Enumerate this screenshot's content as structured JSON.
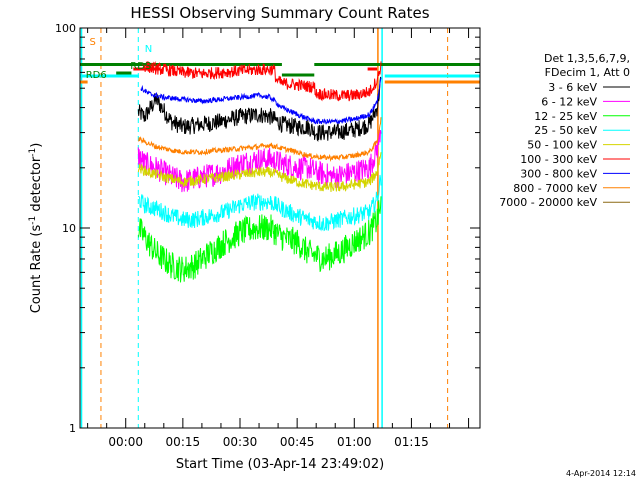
{
  "chart_data": {
    "type": "line",
    "title": "HESSI Observing Summary Count Rates",
    "xlabel": "Start Time (03-Apr-14 23:49:02)",
    "ylabel": "Count Rate (s^-1 detector^-1)",
    "ylabel_main": "Count Rate (s",
    "ylabel_exp1": "-1",
    "ylabel_mid": " detector",
    "ylabel_exp2": "-1",
    "ylabel_end": ")",
    "yscale": "log",
    "ylim": [
      1,
      100
    ],
    "xlim_minutes": [
      -12,
      93
    ],
    "y_ticks": [
      "1",
      "10",
      "100"
    ],
    "x_ticks": [
      {
        "m": 0,
        "label": "00:00"
      },
      {
        "m": 15,
        "label": "00:15"
      },
      {
        "m": 30,
        "label": "00:30"
      },
      {
        "m": 45,
        "label": "00:45"
      },
      {
        "m": 60,
        "label": "01:00"
      },
      {
        "m": 75,
        "label": "01:15"
      }
    ],
    "legend_header": [
      "Det 1,3,5,6,7,9,",
      "FDecim 1, Att 0"
    ],
    "legend_position": "right",
    "series": [
      {
        "name": "3 - 6 keV",
        "color": "#000000",
        "noise": 0.1,
        "points": [
          [
            3.3,
            38
          ],
          [
            5,
            36
          ],
          [
            8,
            44
          ],
          [
            12,
            34
          ],
          [
            15,
            32
          ],
          [
            20,
            33
          ],
          [
            25,
            34
          ],
          [
            30,
            36
          ],
          [
            35,
            37
          ],
          [
            38,
            36
          ],
          [
            41,
            33
          ],
          [
            45,
            32
          ],
          [
            48,
            32
          ],
          [
            50,
            30
          ],
          [
            55,
            30
          ],
          [
            60,
            31
          ],
          [
            64,
            33
          ],
          [
            66,
            40
          ],
          [
            67,
            55
          ]
        ]
      },
      {
        "name": "6 - 12 keV",
        "color": "#ff00ff",
        "noise": 0.14,
        "points": [
          [
            3.3,
            23
          ],
          [
            5,
            21
          ],
          [
            8,
            20
          ],
          [
            12,
            18
          ],
          [
            15,
            17
          ],
          [
            20,
            18
          ],
          [
            25,
            19
          ],
          [
            30,
            21
          ],
          [
            35,
            22
          ],
          [
            38,
            22
          ],
          [
            41,
            21
          ],
          [
            45,
            20
          ],
          [
            48,
            20
          ],
          [
            50,
            19
          ],
          [
            55,
            18
          ],
          [
            60,
            19
          ],
          [
            64,
            20
          ],
          [
            66,
            25
          ],
          [
            67,
            32
          ]
        ]
      },
      {
        "name": "12 - 25 keV",
        "color": "#00ff00",
        "noise": 0.16,
        "points": [
          [
            3.3,
            10
          ],
          [
            5,
            9
          ],
          [
            8,
            7.5
          ],
          [
            12,
            6.5
          ],
          [
            15,
            6.2
          ],
          [
            18,
            6.5
          ],
          [
            22,
            7.5
          ],
          [
            26,
            8.5
          ],
          [
            30,
            9.5
          ],
          [
            34,
            10
          ],
          [
            38,
            10
          ],
          [
            41,
            9
          ],
          [
            45,
            8.5
          ],
          [
            48,
            7.5
          ],
          [
            52,
            7
          ],
          [
            56,
            7.5
          ],
          [
            60,
            8.5
          ],
          [
            64,
            9.5
          ],
          [
            66,
            11
          ],
          [
            67,
            13
          ]
        ]
      },
      {
        "name": "25 - 50 keV",
        "color": "#00ffff",
        "noise": 0.1,
        "points": [
          [
            3.3,
            14
          ],
          [
            5,
            13
          ],
          [
            8,
            12.5
          ],
          [
            12,
            11.5
          ],
          [
            15,
            11
          ],
          [
            18,
            11
          ],
          [
            22,
            11.5
          ],
          [
            26,
            12
          ],
          [
            30,
            13
          ],
          [
            34,
            13.5
          ],
          [
            38,
            13.5
          ],
          [
            41,
            12.5
          ],
          [
            45,
            11.5
          ],
          [
            48,
            11
          ],
          [
            52,
            10.5
          ],
          [
            56,
            11
          ],
          [
            60,
            11.5
          ],
          [
            64,
            12
          ],
          [
            66,
            14
          ],
          [
            67,
            18
          ]
        ]
      },
      {
        "name": "50 - 100 keV",
        "color": "#d4d400",
        "noise": 0.06,
        "points": [
          [
            3.3,
            20
          ],
          [
            6,
            19
          ],
          [
            10,
            18
          ],
          [
            15,
            17
          ],
          [
            20,
            17.5
          ],
          [
            25,
            18
          ],
          [
            30,
            18.5
          ],
          [
            35,
            19
          ],
          [
            38,
            19
          ],
          [
            41,
            18
          ],
          [
            45,
            17
          ],
          [
            48,
            16.5
          ],
          [
            52,
            16
          ],
          [
            56,
            16
          ],
          [
            60,
            16.5
          ],
          [
            64,
            17
          ],
          [
            66,
            19
          ],
          [
            67,
            24
          ]
        ]
      },
      {
        "name": "100 - 300 keV",
        "color": "#ff0000",
        "noise": 0.07,
        "points": [
          [
            4.5,
            65
          ],
          [
            7,
            63
          ],
          [
            10,
            62
          ],
          [
            15,
            60
          ],
          [
            20,
            59
          ],
          [
            25,
            60
          ],
          [
            30,
            61
          ],
          [
            35,
            62
          ],
          [
            39,
            62
          ],
          [
            39.5,
            55
          ],
          [
            41,
            53
          ],
          [
            45,
            52
          ],
          [
            48,
            51
          ],
          [
            49.5,
            51
          ],
          [
            50,
            47
          ],
          [
            55,
            46
          ],
          [
            60,
            46
          ],
          [
            64,
            48
          ],
          [
            66,
            55
          ],
          [
            67,
            65
          ]
        ]
      },
      {
        "name": "300 - 800 keV",
        "color": "#0000ff",
        "noise": 0.03,
        "points": [
          [
            4,
            50
          ],
          [
            6,
            47
          ],
          [
            10,
            45
          ],
          [
            15,
            44
          ],
          [
            20,
            43
          ],
          [
            25,
            44
          ],
          [
            30,
            45
          ],
          [
            35,
            46
          ],
          [
            38,
            45
          ],
          [
            41,
            40
          ],
          [
            45,
            37
          ],
          [
            48,
            35
          ],
          [
            50,
            34
          ],
          [
            55,
            34
          ],
          [
            60,
            35
          ],
          [
            64,
            37
          ],
          [
            66,
            43
          ],
          [
            67,
            55
          ]
        ]
      },
      {
        "name": "800 - 7000 keV",
        "color": "#ff8000",
        "noise": 0.03,
        "points": [
          [
            3.3,
            28
          ],
          [
            5,
            27
          ],
          [
            8,
            25.5
          ],
          [
            12,
            24.5
          ],
          [
            15,
            24
          ],
          [
            20,
            24
          ],
          [
            25,
            24.5
          ],
          [
            30,
            25
          ],
          [
            35,
            25.5
          ],
          [
            38,
            26
          ],
          [
            41,
            25
          ],
          [
            45,
            24
          ],
          [
            48,
            23
          ],
          [
            52,
            22.5
          ],
          [
            56,
            22.5
          ],
          [
            60,
            23
          ],
          [
            64,
            24
          ],
          [
            66,
            27
          ],
          [
            67,
            35
          ]
        ]
      },
      {
        "name": "7000 - 20000 keV",
        "color": "#8b6914",
        "noise": 0,
        "points": []
      }
    ],
    "annotations": [
      {
        "text": "S",
        "color": "#ff8000"
      },
      {
        "text": "N",
        "color": "#00ffff"
      },
      {
        "text": "RD6",
        "color": "#008000"
      },
      {
        "text": "RDS",
        "color": "#008000"
      }
    ],
    "timestamp": "4-Apr-2014 12:14"
  }
}
